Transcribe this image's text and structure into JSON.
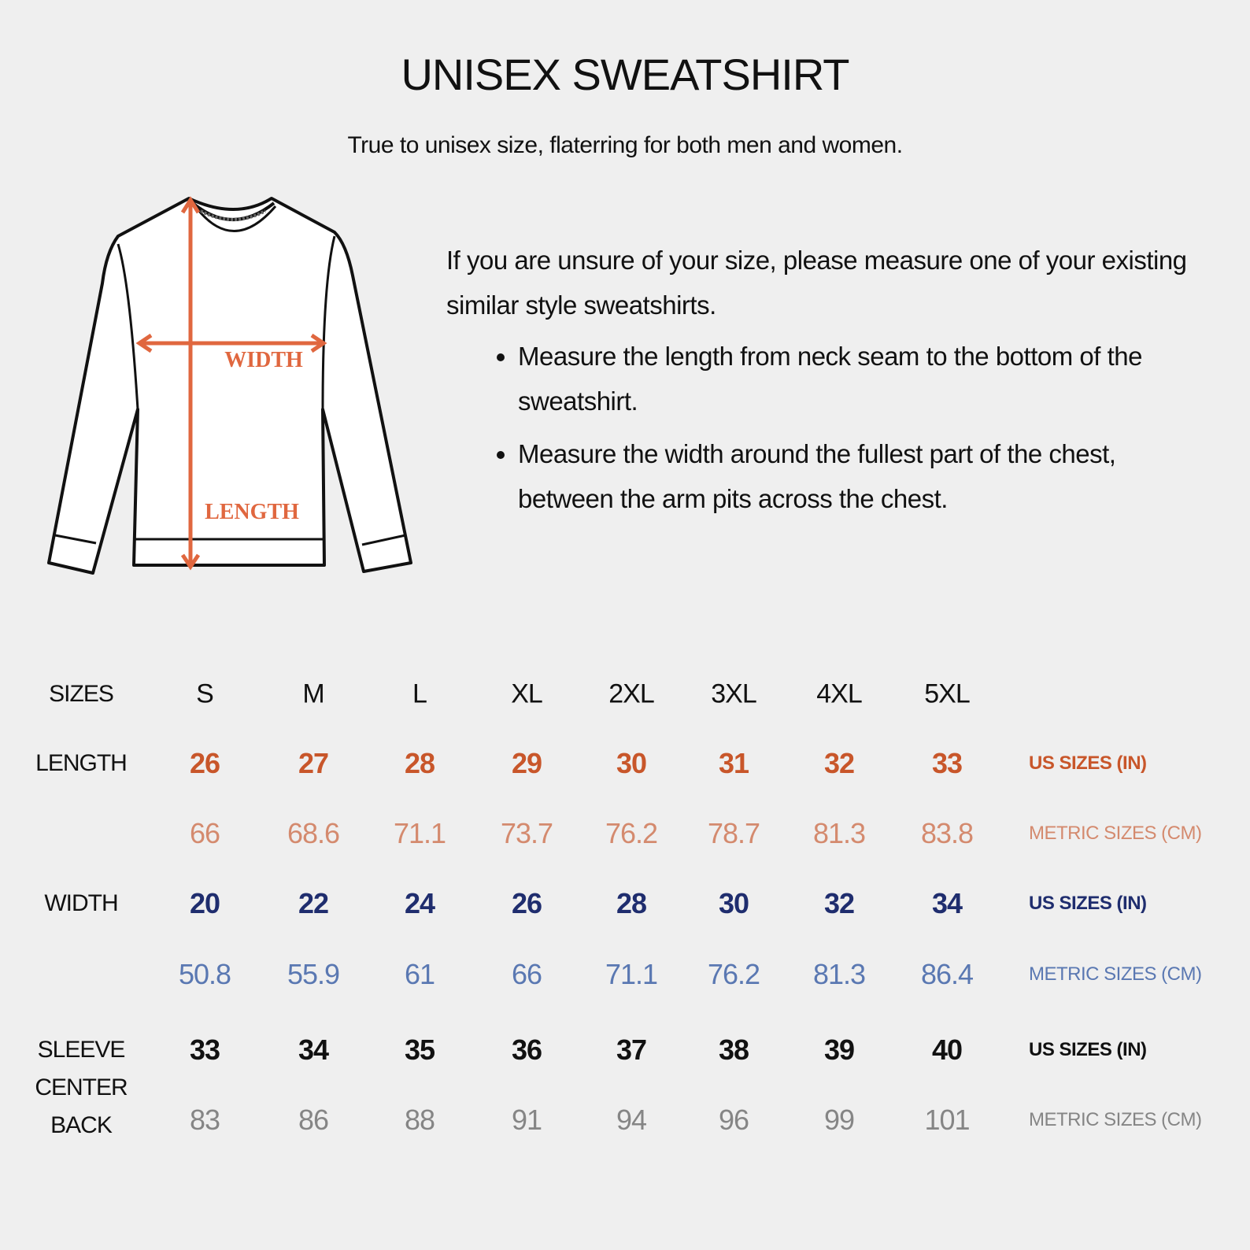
{
  "header": {
    "title": "UNISEX SWEATSHIRT",
    "subtitle": "True to unisex size, flaterring for both men and women."
  },
  "illustration": {
    "icon": "sweatshirt-measurement-diagram",
    "width_label": "WIDTH",
    "length_label": "LENGTH",
    "arrow_color": "#e0673f"
  },
  "instructions": {
    "intro": "If you are unsure of your size, please measure one of your existing similar style sweatshirts.",
    "bullets": [
      "Measure the length from neck seam to the bottom of the sweatshirt.",
      "Measure the width around the fullest part of the chest, between the arm pits across the chest."
    ]
  },
  "size_table": {
    "sizes_label": "SIZES",
    "sizes": [
      "S",
      "M",
      "L",
      "XL",
      "2XL",
      "3XL",
      "4XL",
      "5XL"
    ],
    "rows": [
      {
        "label": "LENGTH",
        "values": [
          "26",
          "27",
          "28",
          "29",
          "30",
          "31",
          "32",
          "33"
        ],
        "unit": "US SIZES (IN)",
        "color": "#c8562a",
        "bold": true
      },
      {
        "label": "",
        "values": [
          "66",
          "68.6",
          "71.1",
          "73.7",
          "76.2",
          "78.7",
          "81.3",
          "83.8"
        ],
        "unit": "METRIC SIZES (CM)",
        "color": "#d48a6e",
        "bold": false
      },
      {
        "label": "WIDTH",
        "values": [
          "20",
          "22",
          "24",
          "26",
          "28",
          "30",
          "32",
          "34"
        ],
        "unit": "US SIZES (IN)",
        "color": "#1f2d6e",
        "bold": true
      },
      {
        "label": "",
        "values": [
          "50.8",
          "55.9",
          "61",
          "66",
          "71.1",
          "76.2",
          "81.3",
          "86.4"
        ],
        "unit": "METRIC SIZES (CM)",
        "color": "#5a78b2",
        "bold": false
      },
      {
        "label": "",
        "values": [
          "33",
          "34",
          "35",
          "36",
          "37",
          "38",
          "39",
          "40"
        ],
        "unit": "US SIZES (IN)",
        "color": "#111111",
        "bold": true
      },
      {
        "label": "",
        "values": [
          "83",
          "86",
          "88",
          "91",
          "94",
          "96",
          "99",
          "101"
        ],
        "unit": "METRIC SIZES (CM)",
        "color": "#858585",
        "bold": false
      }
    ],
    "sleeve_label": [
      "SLEEVE",
      "CENTER",
      "BACK"
    ]
  }
}
